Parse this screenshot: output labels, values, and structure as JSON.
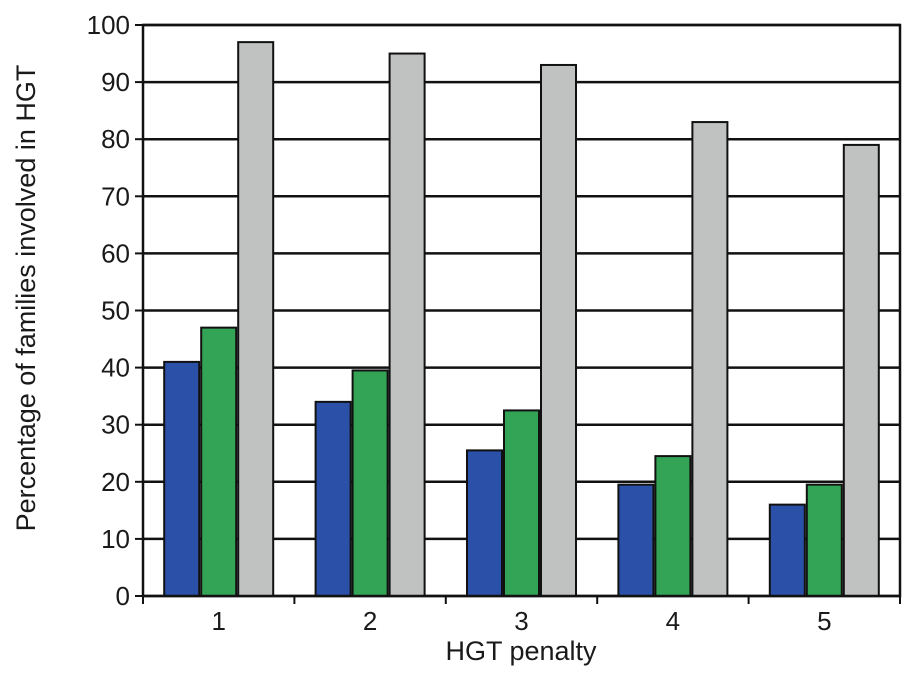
{
  "chart_data": {
    "type": "bar",
    "categories": [
      "1",
      "2",
      "3",
      "4",
      "5"
    ],
    "series": [
      {
        "values": [
          41,
          34,
          25.5,
          19.5,
          16
        ],
        "color": "#2b50a8"
      },
      {
        "values": [
          47,
          39.5,
          32.5,
          24.5,
          19.5
        ],
        "color": "#33a355"
      },
      {
        "values": [
          97,
          95,
          93,
          83,
          79
        ],
        "color": "#c0c2c1"
      }
    ],
    "xlabel": "HGT penalty",
    "ylabel": "Percentage of families involved in HGT",
    "ylim": [
      0,
      100
    ],
    "yticks": [
      "0",
      "10",
      "20",
      "30",
      "40",
      "50",
      "60",
      "70",
      "80",
      "90",
      "100"
    ],
    "grid": true,
    "legend": "none"
  }
}
